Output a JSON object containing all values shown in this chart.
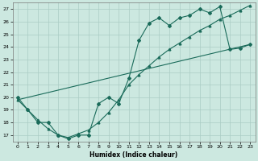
{
  "xlabel": "Humidex (Indice chaleur)",
  "bg_color": "#cce8e0",
  "grid_color": "#aaccC4",
  "line_color": "#1a6b5a",
  "xlim": [
    -0.5,
    23.5
  ],
  "ylim": [
    16.5,
    27.5
  ],
  "xticks": [
    0,
    1,
    2,
    3,
    4,
    5,
    6,
    7,
    8,
    9,
    10,
    11,
    12,
    13,
    14,
    15,
    16,
    17,
    18,
    19,
    20,
    21,
    22,
    23
  ],
  "yticks": [
    17,
    18,
    19,
    20,
    21,
    22,
    23,
    24,
    25,
    26,
    27
  ],
  "line1_x": [
    0,
    1,
    2,
    3,
    4,
    5,
    6,
    7,
    8,
    9,
    10,
    11,
    12,
    13,
    14,
    15,
    16,
    17,
    18,
    19,
    20,
    21,
    22,
    23
  ],
  "line1_y": [
    20,
    19,
    18,
    18,
    17,
    16.7,
    17,
    17,
    19.5,
    20,
    19.5,
    21.5,
    24.5,
    25.9,
    26.3,
    25.7,
    26.3,
    26.5,
    27,
    26.7,
    27.2,
    23.8,
    23.9,
    24.2
  ],
  "line2_x": [
    0,
    1,
    2,
    3,
    4,
    5,
    6,
    7,
    8,
    9,
    10,
    11,
    12,
    13,
    14,
    15,
    16,
    17,
    18,
    19,
    20,
    21,
    22,
    23
  ],
  "line2_y": [
    19.8,
    19.0,
    18.2,
    17.5,
    17.0,
    16.8,
    17.1,
    17.4,
    18.0,
    18.8,
    19.8,
    21.0,
    21.8,
    22.5,
    23.2,
    23.8,
    24.3,
    24.8,
    25.3,
    25.7,
    26.2,
    26.5,
    26.9,
    27.3
  ],
  "line3_x": [
    0,
    23
  ],
  "line3_y": [
    19.8,
    24.2
  ]
}
